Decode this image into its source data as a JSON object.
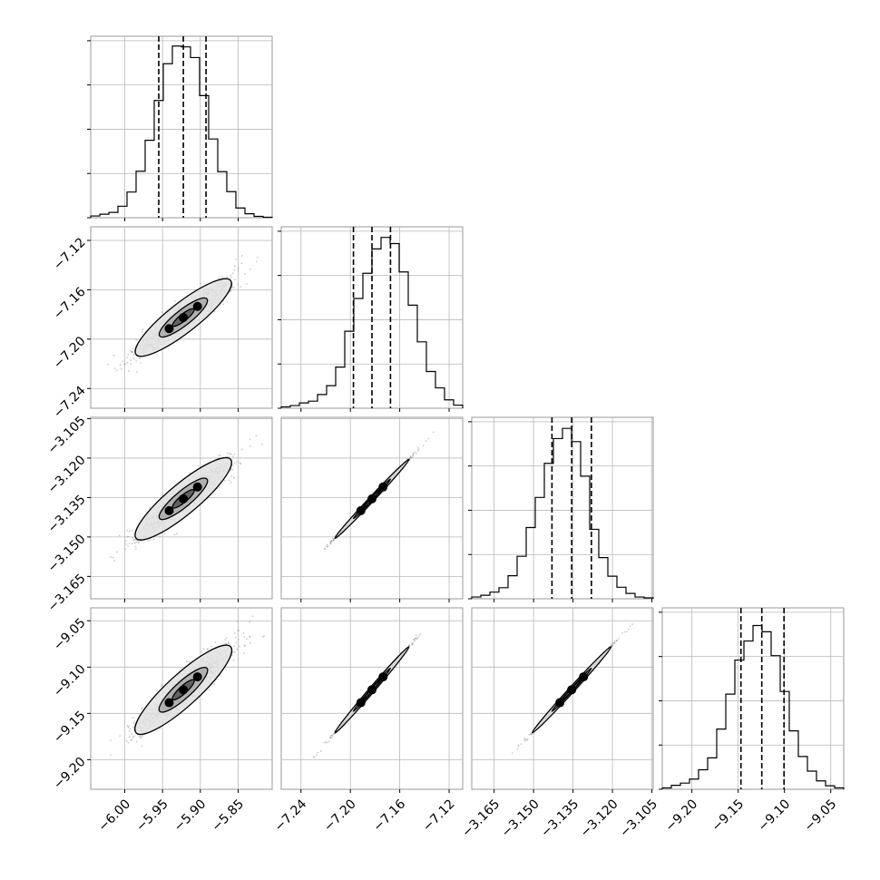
{
  "chart_data": {
    "type": "corner",
    "grid": true,
    "params": [
      {
        "range": [
          -6.045,
          -5.805
        ],
        "ticks": [
          {
            "v": -6.0,
            "label": "−6.00"
          },
          {
            "v": -5.95,
            "label": "−5.95"
          },
          {
            "v": -5.9,
            "label": "−5.90"
          },
          {
            "v": -5.85,
            "label": "−5.85"
          }
        ],
        "quantiles": [
          -5.955,
          -5.9225,
          -5.8925
        ],
        "hist": [
          0.4,
          0.8,
          1.2,
          2.6,
          5.8,
          10.5,
          17.5,
          26.5,
          34.8,
          38.8,
          38.6,
          36.2,
          27.6,
          17.8,
          10.4,
          5.9,
          2.2,
          0.9,
          0.3,
          0.1
        ]
      },
      {
        "range": [
          -7.256,
          -7.109
        ],
        "ticks": [
          {
            "v": -7.24,
            "label": "−7.24"
          },
          {
            "v": -7.2,
            "label": "−7.20"
          },
          {
            "v": -7.16,
            "label": "−7.16"
          },
          {
            "v": -7.12,
            "label": "−7.12"
          }
        ],
        "quantiles": [
          -7.1975,
          -7.1825,
          -7.1675
        ],
        "hist": [
          0.3,
          0.6,
          1.2,
          1.6,
          3.1,
          5.1,
          9.3,
          17.4,
          24.8,
          30.5,
          36.0,
          38.6,
          37.2,
          30.8,
          23.3,
          15.0,
          8.3,
          4.6,
          1.9,
          0.7
        ]
      },
      {
        "range": [
          -3.1735,
          -3.1045
        ],
        "ticks": [
          {
            "v": -3.165,
            "label": "−3.165"
          },
          {
            "v": -3.15,
            "label": "−3.150"
          },
          {
            "v": -3.135,
            "label": "−3.135"
          },
          {
            "v": -3.12,
            "label": "−3.120"
          },
          {
            "v": -3.105,
            "label": "−3.105"
          }
        ],
        "quantiles": [
          -3.143,
          -3.1355,
          -3.128
        ],
        "hist": [
          0.4,
          0.8,
          1.5,
          2.5,
          5.2,
          9.6,
          16.1,
          22.9,
          30.6,
          36.2,
          38.5,
          35.5,
          27.7,
          15.7,
          9.3,
          5.1,
          2.6,
          1.2,
          0.4,
          0.2
        ]
      },
      {
        "range": [
          -9.232,
          -9.036
        ],
        "ticks": [
          {
            "v": -9.2,
            "label": "−9.20"
          },
          {
            "v": -9.15,
            "label": "−9.15"
          },
          {
            "v": -9.1,
            "label": "−9.10"
          },
          {
            "v": -9.05,
            "label": "−9.05"
          }
        ],
        "quantiles": [
          -9.147,
          -9.1245,
          -9.1005
        ],
        "hist": [
          0.3,
          0.9,
          1.4,
          2.3,
          4.4,
          7.1,
          13.6,
          21.5,
          29.2,
          33.5,
          37.0,
          35.6,
          30.2,
          22.1,
          13.2,
          7.4,
          4.1,
          1.9,
          0.8,
          0.3
        ]
      }
    ],
    "hist_ylim": [
      0,
      41
    ],
    "hist_yticks": [
      0,
      10,
      20,
      30,
      40
    ]
  }
}
